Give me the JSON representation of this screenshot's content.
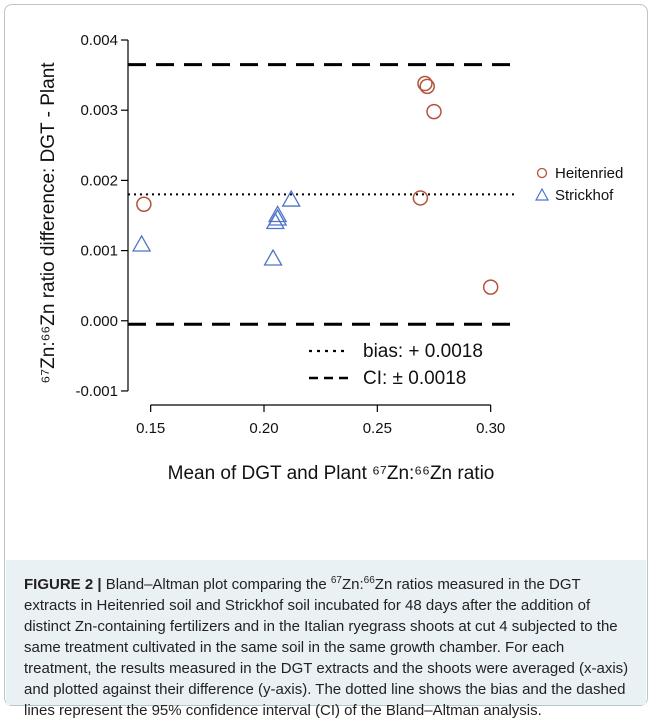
{
  "chart_data": {
    "type": "scatter",
    "title": "",
    "xlabel": "Mean of DGT and Plant ⁶⁷Zn:⁶⁶Zn ratio",
    "ylabel": "⁶⁷Zn:⁶⁶Zn ratio difference: DGT - Plant",
    "xlim": [
      0.14,
      0.305
    ],
    "ylim": [
      -0.0012,
      0.0041
    ],
    "x_ticks": [
      0.15,
      0.2,
      0.25,
      0.3
    ],
    "x_tick_labels": [
      "0.15",
      "0.20",
      "0.25",
      "0.30"
    ],
    "y_ticks": [
      -0.001,
      0.0,
      0.001,
      0.002,
      0.003,
      0.004
    ],
    "y_tick_labels": [
      "-0.001",
      "0.000",
      "0.001",
      "0.002",
      "0.003",
      "0.004"
    ],
    "grid": false,
    "legend_position": "right",
    "series": [
      {
        "name": "Heitenried",
        "marker": "circle",
        "color": "#b5523b",
        "points": [
          {
            "x": 0.147,
            "y": 0.00166
          },
          {
            "x": 0.269,
            "y": 0.00175
          },
          {
            "x": 0.271,
            "y": 0.00338
          },
          {
            "x": 0.272,
            "y": 0.00334
          },
          {
            "x": 0.275,
            "y": 0.00298
          },
          {
            "x": 0.3,
            "y": 0.00048
          }
        ]
      },
      {
        "name": "Strickhof",
        "marker": "triangle",
        "color": "#4f73c9",
        "points": [
          {
            "x": 0.146,
            "y": 0.00108
          },
          {
            "x": 0.204,
            "y": 0.00088
          },
          {
            "x": 0.205,
            "y": 0.0014
          },
          {
            "x": 0.206,
            "y": 0.00145
          },
          {
            "x": 0.206,
            "y": 0.0015
          },
          {
            "x": 0.212,
            "y": 0.00172
          }
        ]
      }
    ],
    "reference_lines": [
      {
        "name": "bias",
        "y": 0.0018,
        "style": "dotted",
        "label": "bias: + 0.0018"
      },
      {
        "name": "ci-upper",
        "y": 0.00365,
        "style": "dashed"
      },
      {
        "name": "ci-lower",
        "y": -5e-05,
        "style": "dashed"
      }
    ],
    "line_legend": [
      {
        "style": "dotted",
        "label": "bias: + 0.0018"
      },
      {
        "style": "dashed",
        "label": "CI: ± 0.0018"
      }
    ]
  },
  "caption": {
    "label": "FIGURE 2 |",
    "text_1": " Bland–Altman plot comparing the ",
    "sup_1": "67",
    "text_2": "Zn:",
    "sup_2": "66",
    "text_3": "Zn ratios measured in the DGT extracts in Heitenried soil and Strickhof soil incubated for 48 days after the addition of distinct Zn-containing fertilizers and in the Italian ryegrass shoots at cut 4 subjected to the same treatment cultivated in the same soil in the same growth chamber. For each treatment, the results measured in the DGT extracts and the shoots were averaged (x-axis) and plotted against their difference (y-axis). The dotted line shows the bias and the dashed lines represent the 95% confidence interval (CI) of the Bland–Altman analysis."
  }
}
